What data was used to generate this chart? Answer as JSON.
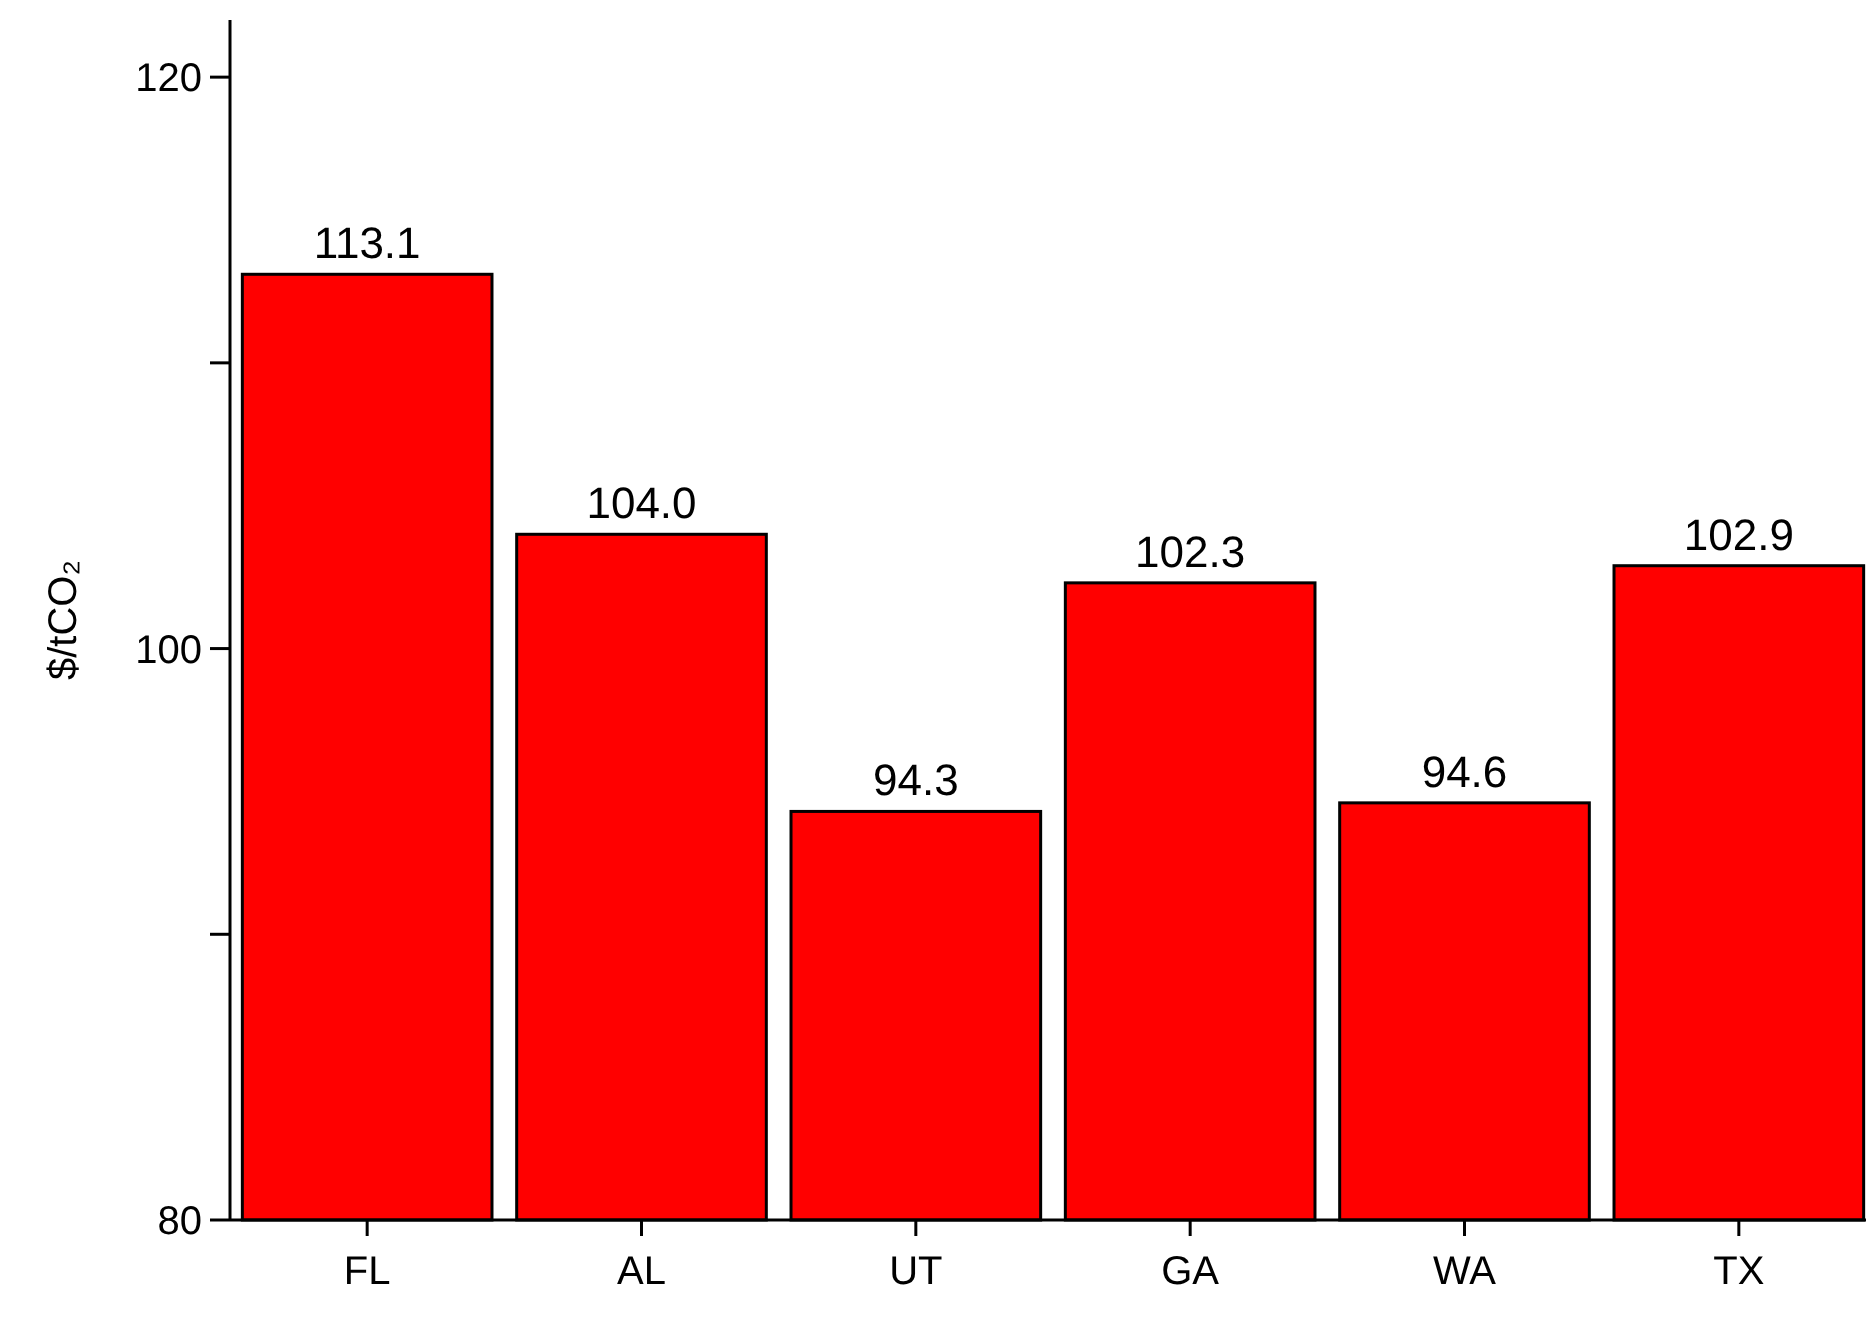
{
  "chart_data": {
    "type": "bar",
    "ylabel": "$/tCO₂",
    "categories": [
      "FL",
      "AL",
      "UT",
      "GA",
      "WA",
      "TX"
    ],
    "values": [
      113.1,
      104.0,
      94.3,
      102.3,
      94.6,
      102.9
    ],
    "value_labels": [
      "113.1",
      "104.0",
      "94.3",
      "102.3",
      "94.6",
      "102.9"
    ],
    "color": "#ff0000",
    "ylim": [
      80,
      122
    ],
    "yticks": [
      80,
      {
        "value": 90,
        "label": null
      },
      100,
      {
        "value": 110,
        "label": null
      },
      120
    ],
    "grid": false
  }
}
